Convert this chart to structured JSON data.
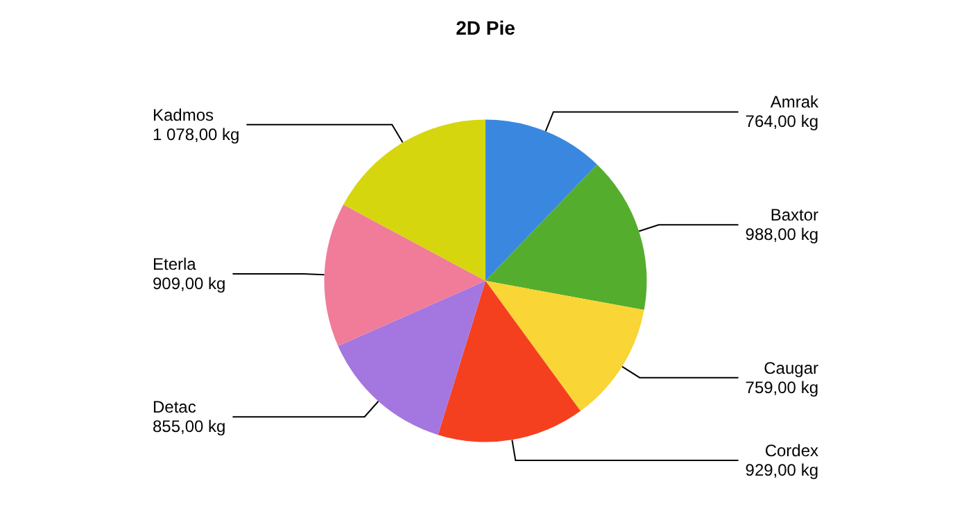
{
  "chart_data": {
    "type": "pie",
    "title": "2D Pie",
    "categories": [
      "Amrak",
      "Baxtor",
      "Caugar",
      "Cordex",
      "Detac",
      "Eterla",
      "Kadmos"
    ],
    "values": [
      764,
      988,
      759,
      929,
      855,
      909,
      1078
    ],
    "value_labels": [
      "764,00 kg",
      "988,00 kg",
      "759,00 kg",
      "929,00 kg",
      "855,00 kg",
      "909,00 kg",
      "1 078,00 kg"
    ],
    "colors": [
      "#3a87e0",
      "#55ad2e",
      "#f9d535",
      "#f5401f",
      "#a476e0",
      "#f07c9a",
      "#d6d60f"
    ],
    "legend": false
  }
}
